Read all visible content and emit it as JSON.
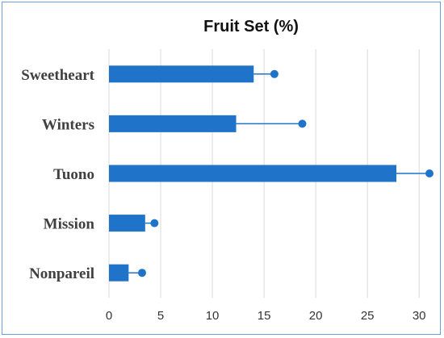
{
  "chart_data": {
    "type": "bar",
    "orientation": "horizontal",
    "title": "Fruit Set  (%)",
    "xlabel": "",
    "ylabel": "",
    "xlim": [
      0,
      31
    ],
    "xticks": [
      0,
      5,
      10,
      15,
      20,
      25,
      30
    ],
    "grid": true,
    "legend": "none",
    "bar_color": "#1f73c9",
    "errorbar_color": "#1f73c9",
    "categories": [
      "Sweetheart",
      "Winters",
      "Tuono",
      "Mission",
      "Nonpareil"
    ],
    "values": [
      14.0,
      12.3,
      27.8,
      3.5,
      1.9
    ],
    "error_upper": [
      16.0,
      18.7,
      31.0,
      4.4,
      3.2
    ]
  }
}
